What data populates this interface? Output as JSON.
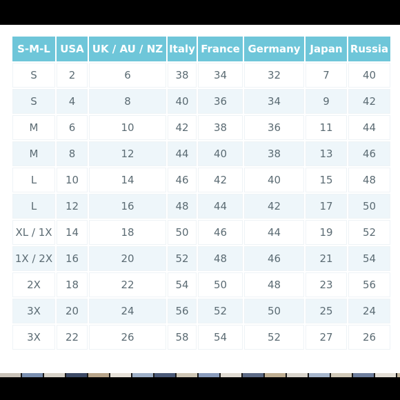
{
  "colors": {
    "header_bg": "#6ec6d9",
    "header_text": "#ffffff",
    "cell_text": "#5b6b73",
    "row_alt_bg": "#eef6fa",
    "frame": "#000000"
  },
  "size_chart": {
    "headers": [
      "S-M-L",
      "USA",
      "UK / AU / NZ",
      "Italy",
      "France",
      "Germany",
      "Japan",
      "Russia"
    ],
    "rows": [
      [
        "S",
        "2",
        "6",
        "38",
        "34",
        "32",
        "7",
        "40"
      ],
      [
        "S",
        "4",
        "8",
        "40",
        "36",
        "34",
        "9",
        "42"
      ],
      [
        "M",
        "6",
        "10",
        "42",
        "38",
        "36",
        "11",
        "44"
      ],
      [
        "M",
        "8",
        "12",
        "44",
        "40",
        "38",
        "13",
        "46"
      ],
      [
        "L",
        "10",
        "14",
        "46",
        "42",
        "40",
        "15",
        "48"
      ],
      [
        "L",
        "12",
        "16",
        "48",
        "44",
        "42",
        "17",
        "50"
      ],
      [
        "XL / 1X",
        "14",
        "18",
        "50",
        "46",
        "44",
        "19",
        "52"
      ],
      [
        "1X / 2X",
        "16",
        "20",
        "52",
        "48",
        "46",
        "21",
        "54"
      ],
      [
        "2X",
        "18",
        "22",
        "54",
        "50",
        "48",
        "23",
        "56"
      ],
      [
        "3X",
        "20",
        "24",
        "56",
        "52",
        "50",
        "25",
        "24"
      ],
      [
        "3X",
        "22",
        "26",
        "58",
        "54",
        "52",
        "27",
        "26"
      ]
    ]
  }
}
